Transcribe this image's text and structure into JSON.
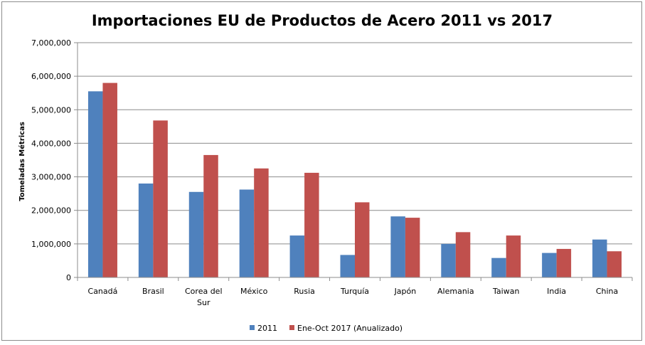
{
  "chart_data": {
    "type": "bar",
    "title": "Importaciones EU de Productos de Acero  2011 vs 2017",
    "ylabel": "Tomeladas Métricas",
    "xlabel": "",
    "ylim": [
      0,
      7000000
    ],
    "yticks": [
      {
        "value": 0,
        "label": "0"
      },
      {
        "value": 1000000,
        "label": "1,000,000"
      },
      {
        "value": 2000000,
        "label": "2,000,000"
      },
      {
        "value": 3000000,
        "label": "3,000,000"
      },
      {
        "value": 4000000,
        "label": "4,000,000"
      },
      {
        "value": 5000000,
        "label": "5,000,000"
      },
      {
        "value": 6000000,
        "label": "6,000,000"
      },
      {
        "value": 7000000,
        "label": "7,000,000"
      }
    ],
    "categories": [
      [
        "Canadá"
      ],
      [
        "Brasil"
      ],
      [
        "Corea del",
        "Sur"
      ],
      [
        "México"
      ],
      [
        "Rusia"
      ],
      [
        "Turquía"
      ],
      [
        "Japón"
      ],
      [
        "Alemania"
      ],
      [
        "Taiwan"
      ],
      [
        "India"
      ],
      [
        "China"
      ]
    ],
    "series": [
      {
        "name": "2011",
        "color": "#4f81bd",
        "values": [
          5550000,
          2800000,
          2550000,
          2620000,
          1250000,
          670000,
          1820000,
          1000000,
          580000,
          730000,
          1130000
        ]
      },
      {
        "name": "Ene-Oct 2017 (Anualizado)",
        "color": "#c0504d",
        "values": [
          5800000,
          4680000,
          3650000,
          3250000,
          3120000,
          2240000,
          1780000,
          1350000,
          1250000,
          850000,
          780000
        ]
      }
    ],
    "grid": true,
    "legend": "bottom"
  }
}
